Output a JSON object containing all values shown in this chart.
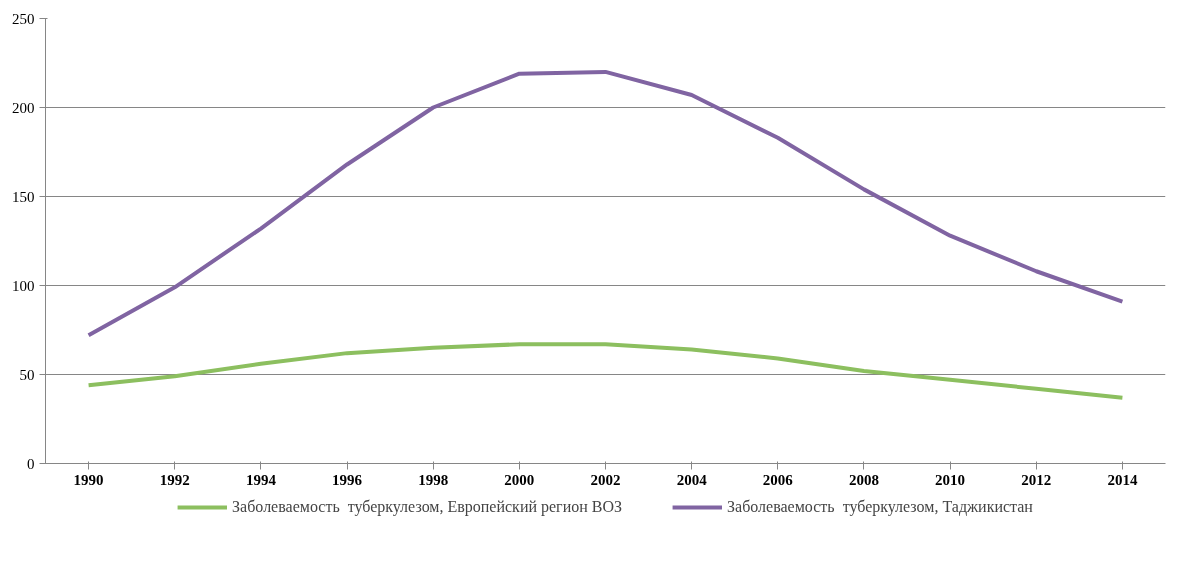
{
  "chart_data": {
    "type": "line",
    "categories": [
      "1990",
      "1992",
      "1994",
      "1996",
      "1998",
      "2000",
      "2002",
      "2004",
      "2006",
      "2008",
      "2010",
      "2012",
      "2014"
    ],
    "series": [
      {
        "name": "Заболеваемость  туберкулезом, Европейский регион ВОЗ",
        "color": "#8cbf5f",
        "values": [
          44,
          49,
          56,
          62,
          65,
          67,
          67,
          64,
          59,
          52,
          47,
          42,
          37
        ]
      },
      {
        "name": "Заболеваемость  туберкулезом, Таджикистан",
        "color": "#8064a2",
        "values": [
          72,
          99,
          132,
          168,
          200,
          219,
          220,
          207,
          183,
          154,
          128,
          108,
          91
        ]
      }
    ],
    "ylim": [
      0,
      250
    ],
    "yticks": [
      0,
      50,
      100,
      150,
      200,
      250
    ],
    "grid": "y",
    "legend": "bottom",
    "marker": "none",
    "line_style": "solid"
  }
}
